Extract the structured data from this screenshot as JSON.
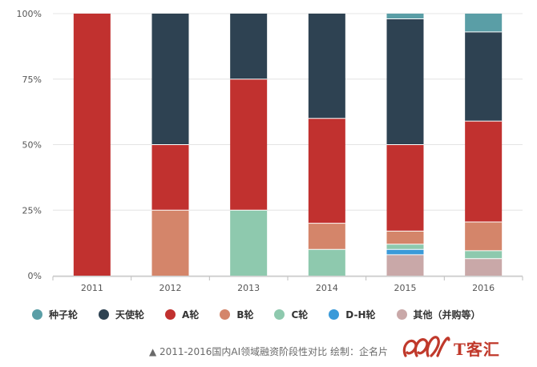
{
  "chart_data": {
    "type": "bar",
    "stacked": true,
    "normalized": true,
    "categories": [
      "2011",
      "2012",
      "2013",
      "2014",
      "2015",
      "2016"
    ],
    "y_ticks": [
      "0%",
      "25%",
      "50%",
      "75%",
      "100%"
    ],
    "ylim": [
      0,
      100
    ],
    "legend_position": "bottom",
    "series": [
      {
        "name": "其他（并购等）",
        "color": "#c9a8a8",
        "values": [
          0,
          0,
          0,
          0,
          8,
          6.5
        ]
      },
      {
        "name": "D-H轮",
        "color": "#3a9ad9",
        "values": [
          0,
          0,
          0,
          0,
          2,
          0
        ]
      },
      {
        "name": "C轮",
        "color": "#8ec9ae",
        "values": [
          0,
          0,
          25,
          10,
          2,
          3
        ]
      },
      {
        "name": "B轮",
        "color": "#d4856a",
        "values": [
          0,
          25,
          0,
          10,
          5,
          11
        ]
      },
      {
        "name": "A轮",
        "color": "#c1312f",
        "values": [
          100,
          25,
          50,
          40,
          33,
          38.5
        ]
      },
      {
        "name": "天使轮",
        "color": "#2e4252",
        "values": [
          0,
          50,
          25,
          40,
          48,
          34
        ]
      },
      {
        "name": "种子轮",
        "color": "#5a9ea6",
        "values": [
          0,
          0,
          0,
          0,
          2,
          7
        ]
      }
    ]
  },
  "legend_order": [
    "种子轮",
    "天使轮",
    "A轮",
    "B轮",
    "C轮",
    "D-H轮",
    "其他（并购等）"
  ],
  "caption": "▲ 2011-2016国内AI领域融资阶段性对比  绘制：企名片",
  "watermark": {
    "text": "T客汇",
    "color": "#c0392b"
  }
}
